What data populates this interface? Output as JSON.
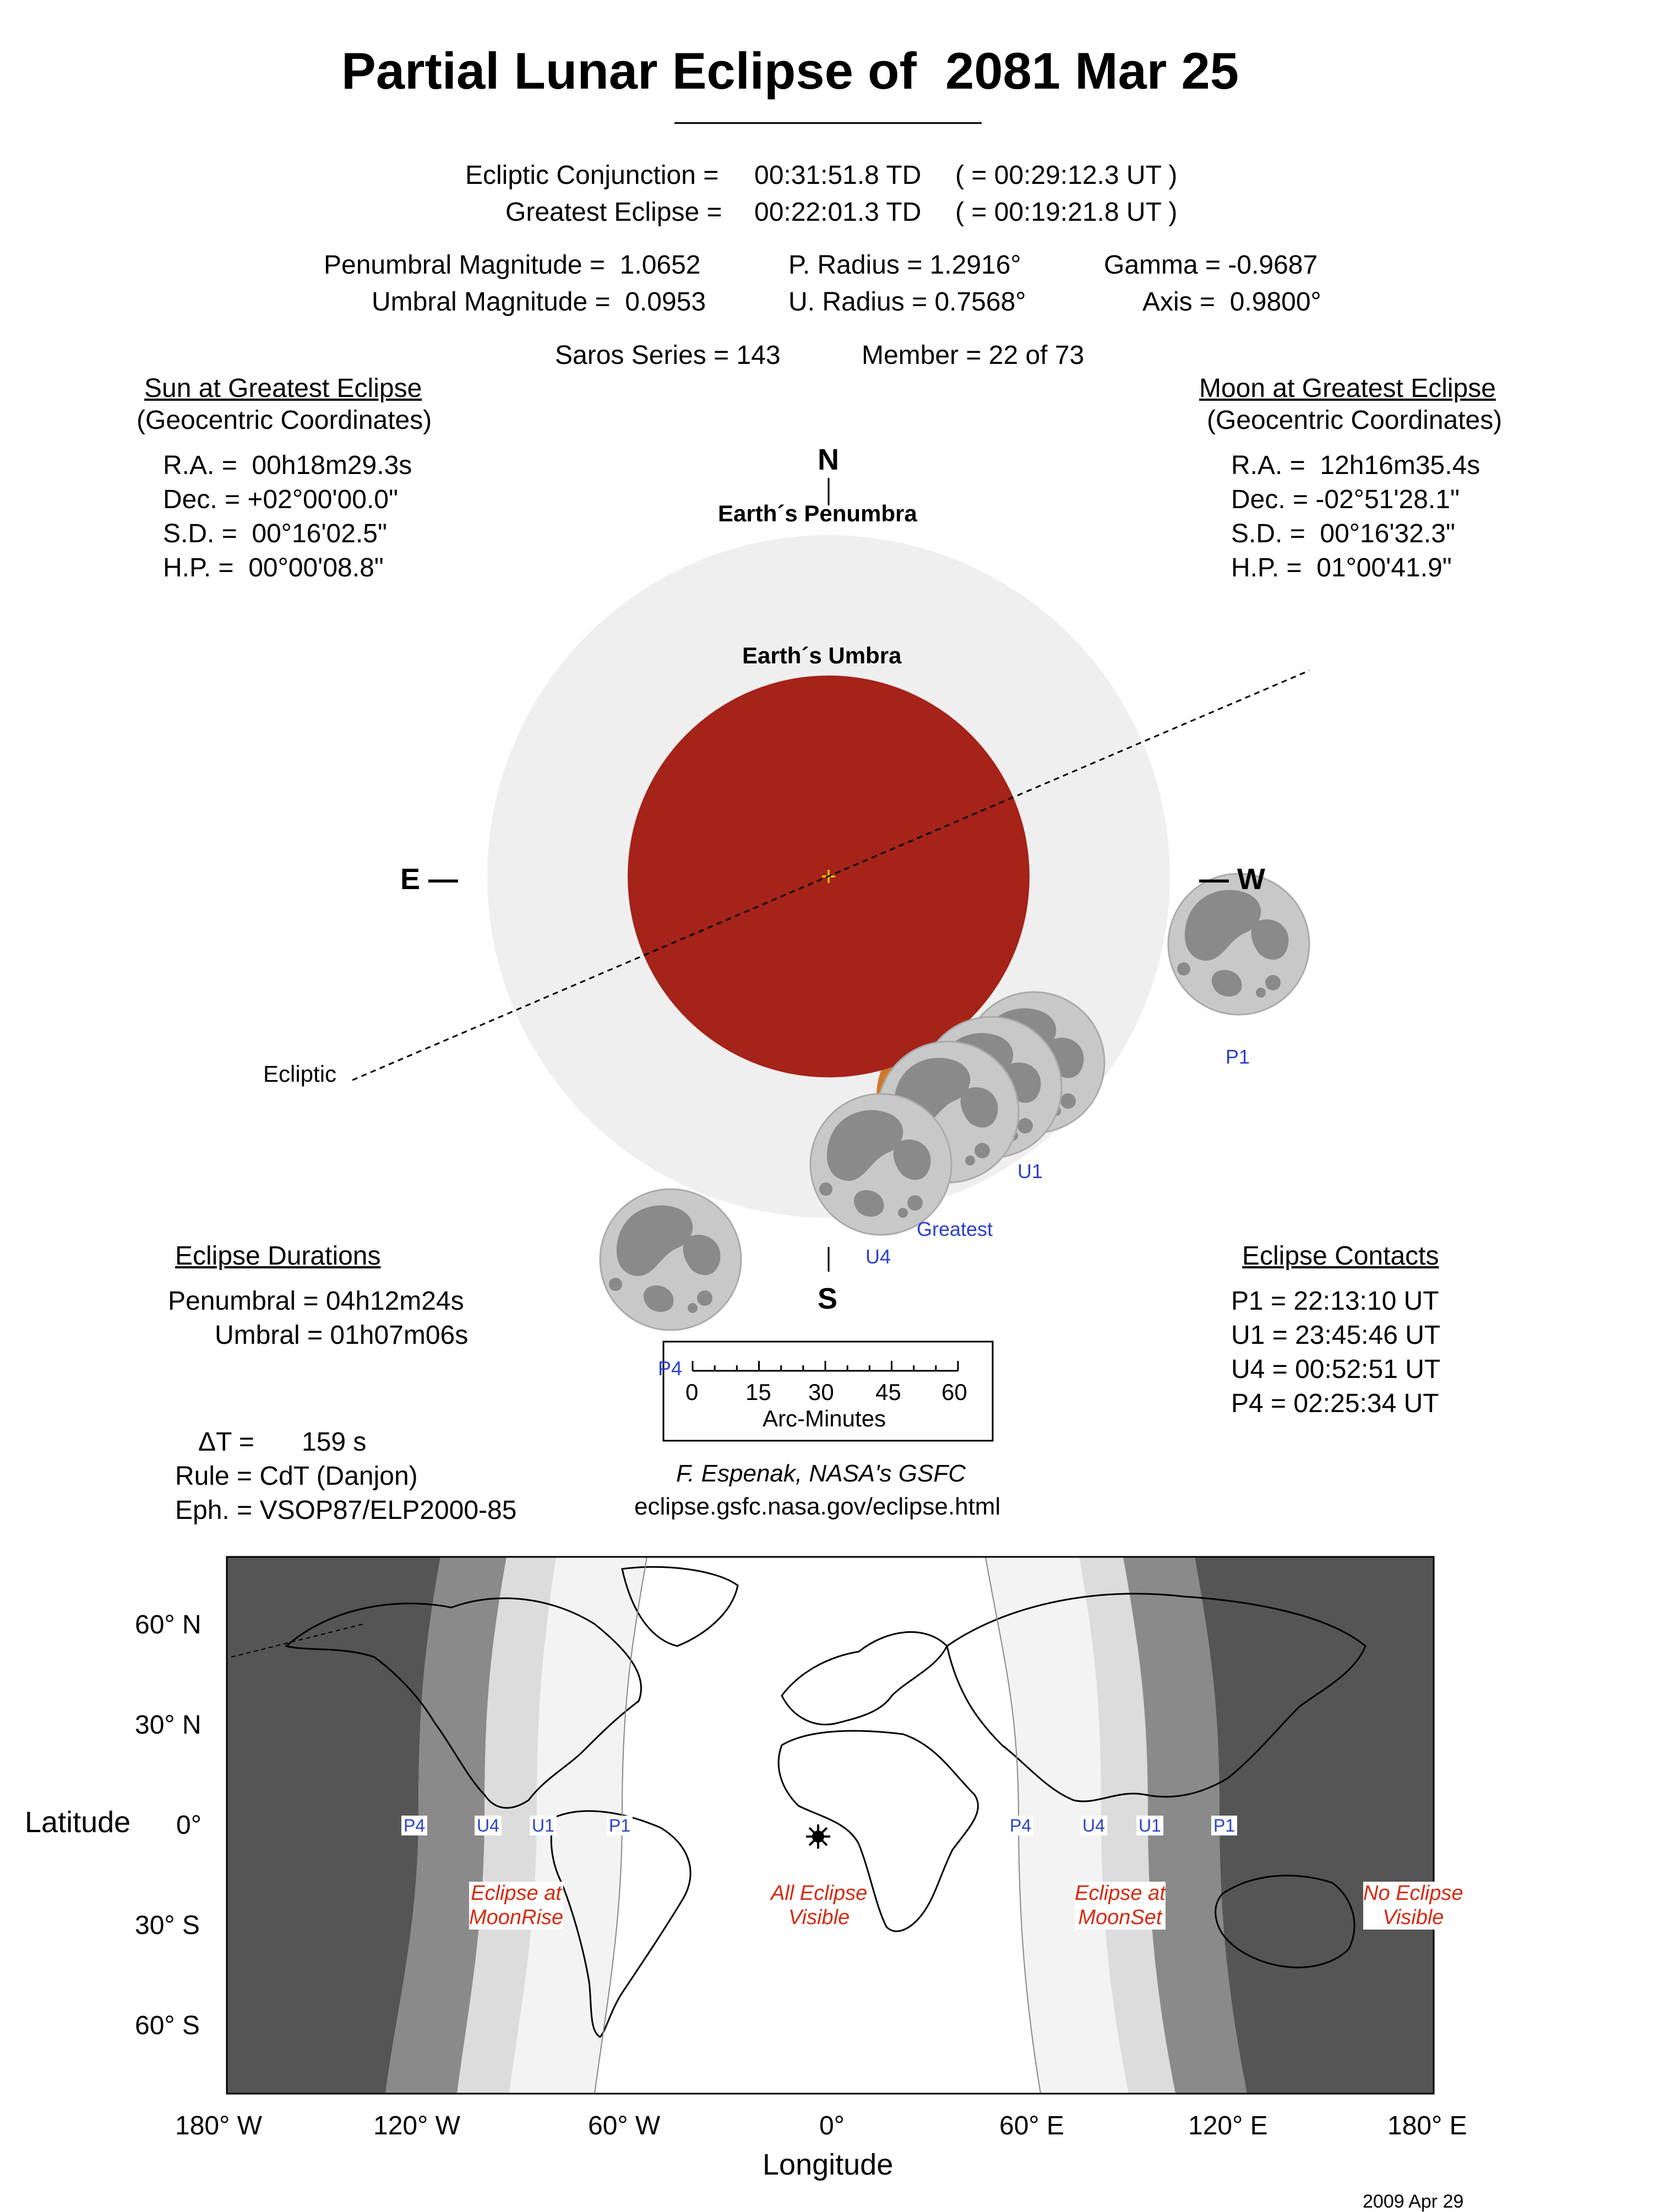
{
  "title": "Partial Lunar Eclipse of  2081 Mar 25",
  "conjunction": {
    "label": "Ecliptic Conjunction =",
    "td": "00:31:51.8 TD",
    "ut": "( = 00:29:12.3 UT )"
  },
  "greatest": {
    "label": "Greatest Eclipse =",
    "td": "00:22:01.3 TD",
    "ut": "( = 00:19:21.8 UT )"
  },
  "magnitudes": {
    "pen": "Penumbral Magnitude =  1.0652",
    "umb": "Umbral Magnitude =  0.0953",
    "p_radius": "P. Radius = 1.2916°",
    "u_radius": "U. Radius = 0.7568°",
    "gamma": "Gamma = -0.9687",
    "axis": "Axis =  0.9800°"
  },
  "saros": {
    "series": "Saros Series = 143",
    "member": "Member = 22 of 73"
  },
  "sun": {
    "heading": "Sun at Greatest Eclipse",
    "sub": "(Geocentric Coordinates)",
    "ra": "R.A. =  00h18m29.3s",
    "dec": "Dec. = +02°00'00.0\"",
    "sd": "S.D. =  00°16'02.5\"",
    "hp": "H.P. =  00°00'08.8\""
  },
  "moon": {
    "heading": "Moon at Greatest Eclipse",
    "sub": "(Geocentric Coordinates)",
    "ra": "R.A. =  12h16m35.4s",
    "dec": "Dec. = -02°51'28.1\"",
    "sd": "S.D. =  00°16'32.3\"",
    "hp": "H.P. =  01°00'41.9\""
  },
  "diagram": {
    "north": "N",
    "south": "S",
    "east": "E —",
    "west": "— W",
    "penumbra_label": "Earth´s Penumbra",
    "umbra_label": "Earth´s Umbra",
    "ecliptic_label": "Ecliptic",
    "p1": "P1",
    "u1": "U1",
    "greatest": "Greatest",
    "u4": "U4",
    "p4": "P4"
  },
  "scale": {
    "ticks": [
      "0",
      "15",
      "30",
      "45",
      "60"
    ],
    "label": "Arc-Minutes"
  },
  "durations": {
    "heading": "Eclipse Durations",
    "penumbral": "Penumbral = 04h12m24s",
    "umbral": "Umbral = 01h07m06s"
  },
  "contacts": {
    "heading": "Eclipse Contacts",
    "p1": "P1 = 22:13:10 UT",
    "u1": "U1 = 23:45:46 UT",
    "u4": "U4 = 00:52:51 UT",
    "p4": "P4 = 02:25:34 UT"
  },
  "misc": {
    "delta_t_label": "ΔT =",
    "delta_t_value": "159 s",
    "rule": "Rule = CdT (Danjon)",
    "eph": "Eph. = VSOP87/ELP2000-85"
  },
  "credit": {
    "author": "F. Espenak, NASA's GSFC",
    "url": "eclipse.gsfc.nasa.gov/eclipse.html"
  },
  "map": {
    "lat_labels": [
      "60° N",
      "30° N",
      "0°",
      "30° S",
      "60° S"
    ],
    "lon_labels": [
      "180° W",
      "120° W",
      "60° W",
      "0°",
      "60° E",
      "120° E",
      "180° E"
    ],
    "xlabel": "Longitude",
    "ylabel": "Latitude",
    "contact_tags": [
      "P4",
      "U4",
      "U1",
      "P1",
      "P4",
      "U4",
      "U1",
      "P1"
    ],
    "zones": {
      "moonrise": [
        "Eclipse at",
        "MoonRise"
      ],
      "all": [
        "All Eclipse",
        "Visible"
      ],
      "moonset": [
        "Eclipse at",
        "MoonSet"
      ],
      "none": [
        "No Eclipse",
        "Visible"
      ]
    },
    "colors": {
      "night": "#555555",
      "dark": "#8a8a8a",
      "mid": "#bcbcbc",
      "light": "#e6e6e6",
      "lightest": "#f3f3f3"
    }
  },
  "date_stamp": "2009 Apr 29",
  "colors": {
    "umbra": "#a52318",
    "penumbra": "#efefef",
    "moon": "#c8c8c8",
    "maria": "#8a8a8a",
    "contact_blue": "#2a40c8",
    "zone_red": "#d42a10"
  }
}
